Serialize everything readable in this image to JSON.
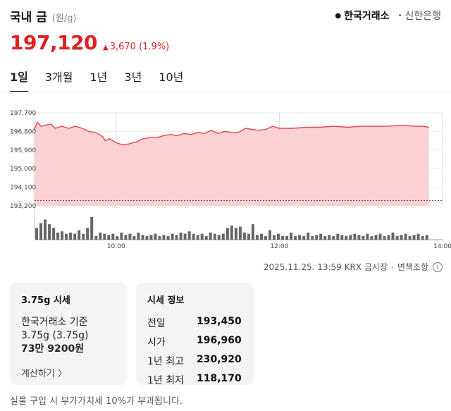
{
  "header": {
    "title": "국내 금",
    "unit": "(원/g)",
    "exchanges": [
      {
        "label": "한국거래소",
        "active": true
      },
      {
        "label": "신한은행",
        "active": false
      }
    ]
  },
  "price": {
    "current": "197,120",
    "change": "3,670 (1.9%)"
  },
  "tabs": [
    "1일",
    "3개월",
    "1년",
    "3년",
    "10년"
  ],
  "colors": {
    "up": "#e02020",
    "area_fill": "#fbd1d3",
    "line": "#e04848",
    "volume": "#666666"
  },
  "chart_data": {
    "type": "area",
    "y_ticks": [
      "197,700",
      "196,800",
      "195,900",
      "195,000",
      "194,100",
      "193,200"
    ],
    "x_ticks": [
      "10:00",
      "12:00",
      "14:00"
    ],
    "ylim": [
      193200,
      197700
    ],
    "xlim_minutes": [
      540,
      840
    ],
    "prev_close": 193450,
    "series": [
      {
        "x": [
          540,
          542,
          545,
          548,
          552,
          555,
          560,
          565,
          570,
          575,
          580,
          585,
          590,
          592,
          595,
          600,
          605,
          610,
          615,
          620,
          625,
          630,
          635,
          640,
          645,
          650,
          655,
          660,
          665,
          670,
          675,
          680,
          685,
          690,
          695,
          700,
          705,
          710,
          715,
          720,
          730,
          740,
          750,
          760,
          770,
          780,
          790,
          800,
          810,
          820,
          825,
          830
        ],
        "y": [
          196900,
          197250,
          197050,
          197100,
          197150,
          196950,
          197050,
          196950,
          197050,
          196950,
          196800,
          196750,
          196550,
          196350,
          196450,
          196250,
          196150,
          196200,
          196300,
          196450,
          196500,
          196500,
          196600,
          196650,
          196600,
          196700,
          196650,
          196750,
          196700,
          196850,
          196700,
          196800,
          196750,
          196750,
          196950,
          196900,
          196850,
          196900,
          197050,
          196950,
          196950,
          197000,
          197000,
          197050,
          197000,
          197050,
          197050,
          197050,
          197100,
          197050,
          197050,
          197000
        ]
      }
    ],
    "volume": [
      1.0,
      1.4,
      1.7,
      1.3,
      1.0,
      0.6,
      0.7,
      0.5,
      0.6,
      0.5,
      0.8,
      0.5,
      1.0,
      1.9,
      0.3,
      0.6,
      0.5,
      0.4,
      0.5,
      0.3,
      0.6,
      0.4,
      0.5,
      0.3,
      0.6,
      0.4,
      0.3,
      0.4,
      0.5,
      0.3,
      0.4,
      0.3,
      0.5,
      0.4,
      0.6,
      0.5,
      0.7,
      0.5,
      0.4,
      0.5,
      0.3,
      0.6,
      0.5,
      0.4,
      0.5,
      1.0,
      1.2,
      1.0,
      1.1,
      0.6,
      0.5,
      1.3,
      0.4,
      0.5,
      0.3,
      0.8,
      0.4,
      0.5,
      0.3,
      0.3,
      0.6,
      0.3,
      0.4,
      0.3,
      0.6,
      0.3,
      0.4,
      0.5,
      0.3,
      0.4,
      0.3,
      0.5,
      0.4,
      0.3,
      0.4,
      0.5,
      0.4,
      0.3,
      0.5,
      0.3,
      0.4,
      0.5,
      0.3,
      0.4,
      0.6,
      0.3,
      0.4,
      0.5,
      0.3,
      0.4,
      0.5,
      0.3,
      0.4
    ]
  },
  "footnote": {
    "timestamp": "2025.11.25. 13:59 KRX 금시장",
    "sep": "·",
    "disclaimer": "면책조항",
    "info_icon": "i"
  },
  "card_375g": {
    "title": "3.75g 시세",
    "source": "한국거래소 기준",
    "weight": "3.75g (3.75g)",
    "price": "73만 9200원",
    "calc_link": "계산하기 〉"
  },
  "card_info": {
    "title": "시세 정보",
    "rows": [
      {
        "label": "전일",
        "value": "193,450"
      },
      {
        "label": "시가",
        "value": "196,960"
      },
      {
        "label": "1년 최고",
        "value": "230,920"
      },
      {
        "label": "1년 최저",
        "value": "118,170"
      }
    ]
  },
  "bottom_note": "실물 구입 시 부가가치세 10%가 부과됩니다."
}
